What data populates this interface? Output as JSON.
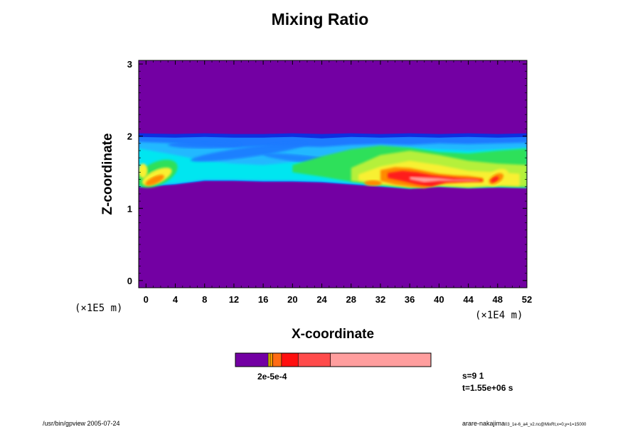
{
  "chart_data": {
    "type": "heatmap",
    "title": "Mixing Ratio",
    "xlabel": "X-coordinate",
    "ylabel": "Z-coordinate",
    "x_unit": "(×1E4 m)",
    "y_unit": "(×1E5 m)",
    "xlim": [
      -1,
      52
    ],
    "ylim": [
      -0.1,
      3.05
    ],
    "x_ticks": [
      "0",
      "4",
      "8",
      "12",
      "16",
      "20",
      "24",
      "28",
      "32",
      "36",
      "40",
      "44",
      "48",
      "52"
    ],
    "x_tick_values": [
      0,
      4,
      8,
      12,
      16,
      20,
      24,
      28,
      32,
      36,
      40,
      44,
      48,
      52
    ],
    "y_ticks": [
      "0",
      "1",
      "2",
      "3"
    ],
    "y_tick_values": [
      0,
      1,
      2,
      3
    ],
    "background_color": "#7300a3",
    "layer": {
      "z_bottom": 1.3,
      "z_top": 2.02
    },
    "colors": {
      "dark_blue": "#0d2ee0",
      "blue": "#1e7aff",
      "light_blue": "#22b8ff",
      "cyan": "#00e6f0",
      "green": "#2ee05a",
      "light_green": "#b5f03a",
      "yellow": "#f8f030",
      "orange": "#ff8a00",
      "red": "#ff1c1c",
      "pink": "#ff9e9e"
    },
    "colorbar": {
      "colors": [
        "#7300a3",
        "#f5d400",
        "#ff9a00",
        "#ff6a14",
        "#ff0f0f",
        "#ff4b4b",
        "#ff9e9e"
      ],
      "fractions": [
        0.168,
        0.01,
        0.013,
        0.045,
        0.085,
        0.165,
        0.514
      ],
      "label": "2e-5e-4"
    }
  },
  "info": {
    "s_label": "s=9 1",
    "t_label": "t=1.55e+06 s"
  },
  "footer": {
    "left": "/usr/bin/gpview 2005-07-24",
    "right": "arare-nakajima",
    "right_small": "03_1e-6_a4_v2.nc@MixRt,x=0,y=1=15000"
  }
}
